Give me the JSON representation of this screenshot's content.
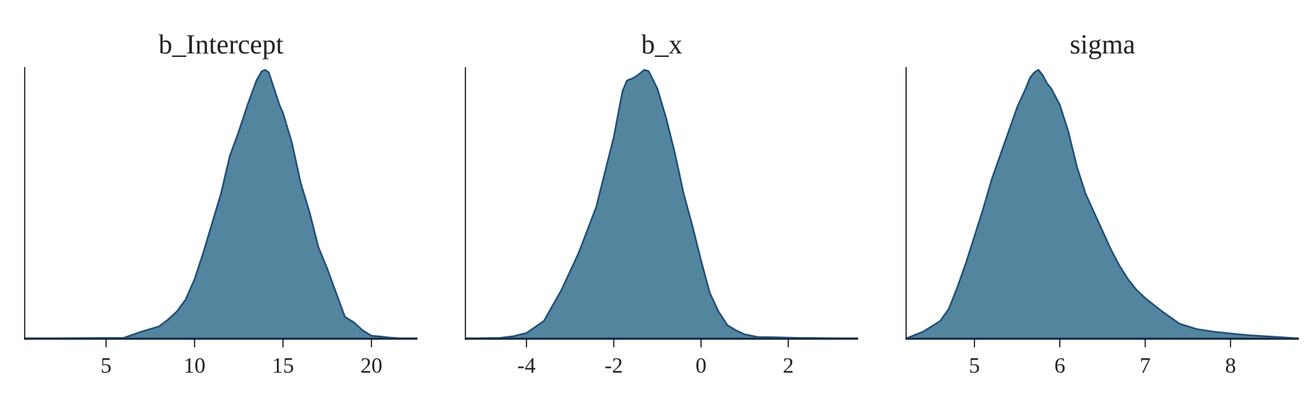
{
  "colors": {
    "fill": "#53859f",
    "line": "#1f4e79",
    "axis": "#000000"
  },
  "chart_data": [
    {
      "type": "area",
      "title": "b_Intercept",
      "xlabel": "",
      "ylabel": "",
      "xlim": [
        0.4,
        22.6
      ],
      "xticks": [
        5,
        10,
        15,
        20
      ],
      "xtick_labels": [
        "5",
        "10",
        "15",
        "20"
      ],
      "x": [
        0.4,
        6.0,
        7.0,
        8.0,
        8.5,
        9.0,
        9.5,
        10.0,
        10.5,
        11.0,
        11.5,
        12.0,
        12.5,
        13.0,
        13.5,
        13.8,
        14.0,
        14.2,
        14.5,
        14.8,
        15.0,
        15.5,
        16.0,
        16.5,
        17.0,
        17.5,
        18.0,
        18.5,
        19.0,
        19.5,
        20.0,
        20.5,
        21.0,
        21.5,
        22.6
      ],
      "y": [
        0.0,
        0.002,
        0.025,
        0.045,
        0.07,
        0.1,
        0.145,
        0.22,
        0.32,
        0.43,
        0.54,
        0.68,
        0.77,
        0.87,
        0.96,
        0.995,
        1.0,
        0.99,
        0.93,
        0.87,
        0.84,
        0.73,
        0.58,
        0.47,
        0.34,
        0.26,
        0.17,
        0.08,
        0.06,
        0.03,
        0.01,
        0.007,
        0.003,
        0.001,
        0.0
      ]
    },
    {
      "type": "area",
      "title": "b_x",
      "xlabel": "",
      "ylabel": "",
      "xlim": [
        -5.4,
        3.6
      ],
      "xticks": [
        -4,
        -2,
        0,
        2
      ],
      "xtick_labels": [
        "-4",
        "-2",
        "0",
        "2"
      ],
      "x": [
        -5.4,
        -4.6,
        -4.3,
        -4.0,
        -3.6,
        -3.2,
        -2.8,
        -2.4,
        -2.2,
        -2.0,
        -1.8,
        -1.7,
        -1.55,
        -1.45,
        -1.3,
        -1.2,
        -1.0,
        -0.8,
        -0.6,
        -0.4,
        -0.2,
        0.0,
        0.2,
        0.4,
        0.6,
        0.8,
        1.0,
        1.3,
        1.7,
        2.2,
        3.6
      ],
      "y": [
        0.0,
        0.002,
        0.008,
        0.02,
        0.065,
        0.18,
        0.32,
        0.49,
        0.62,
        0.75,
        0.92,
        0.96,
        0.97,
        0.98,
        1.0,
        0.995,
        0.93,
        0.82,
        0.69,
        0.54,
        0.42,
        0.29,
        0.17,
        0.1,
        0.05,
        0.03,
        0.015,
        0.005,
        0.004,
        0.002,
        0.0
      ]
    },
    {
      "type": "area",
      "title": "sigma",
      "xlabel": "",
      "ylabel": "",
      "xlim": [
        4.2,
        8.8
      ],
      "xticks": [
        5,
        6,
        7,
        8
      ],
      "xtick_labels": [
        "5",
        "6",
        "7",
        "8"
      ],
      "x": [
        4.2,
        4.4,
        4.6,
        4.7,
        4.8,
        4.9,
        5.0,
        5.1,
        5.2,
        5.3,
        5.4,
        5.5,
        5.6,
        5.65,
        5.7,
        5.75,
        5.8,
        5.85,
        5.9,
        6.0,
        6.1,
        6.2,
        6.3,
        6.4,
        6.5,
        6.6,
        6.7,
        6.8,
        6.9,
        7.0,
        7.2,
        7.4,
        7.6,
        7.8,
        8.0,
        8.2,
        8.5,
        8.8
      ],
      "y": [
        0.0,
        0.025,
        0.065,
        0.11,
        0.19,
        0.28,
        0.38,
        0.48,
        0.59,
        0.68,
        0.77,
        0.86,
        0.93,
        0.97,
        0.99,
        1.0,
        0.98,
        0.95,
        0.93,
        0.87,
        0.77,
        0.64,
        0.54,
        0.47,
        0.4,
        0.33,
        0.27,
        0.22,
        0.18,
        0.15,
        0.1,
        0.055,
        0.035,
        0.025,
        0.018,
        0.012,
        0.006,
        0.0
      ]
    }
  ]
}
